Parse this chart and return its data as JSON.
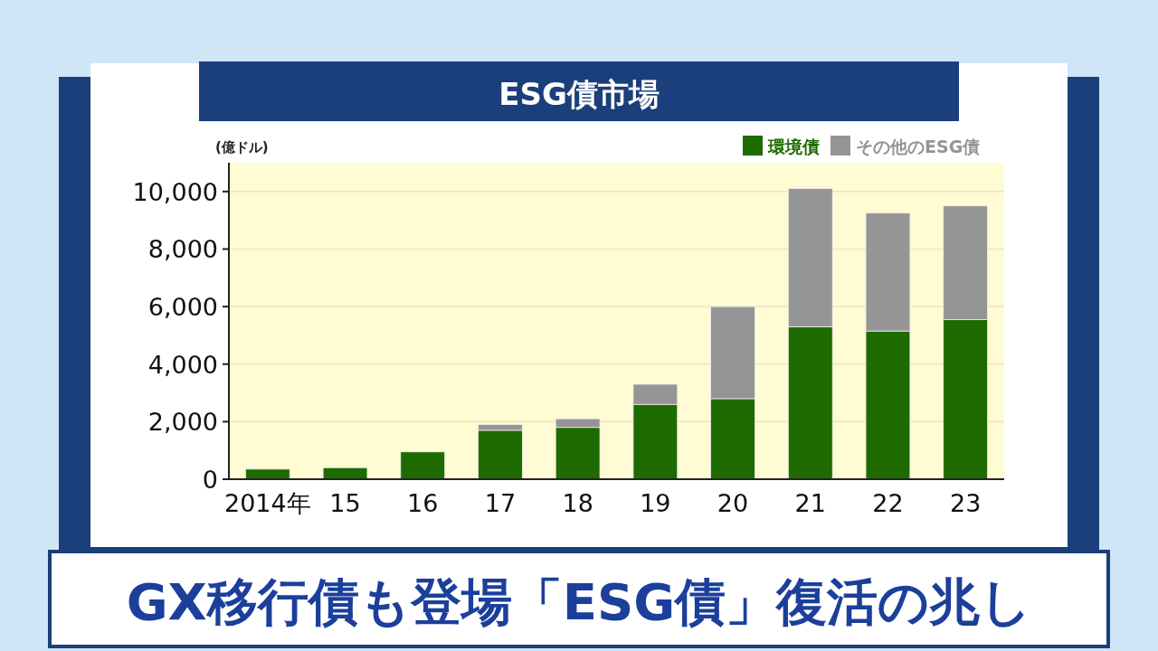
{
  "chart_data": {
    "type": "bar",
    "title": "ESG債市場",
    "subtitle": "GX移行債も登場「ESG債」復活の兆し",
    "ylabel": "(億ドル)",
    "categories": [
      "2014年",
      "15",
      "16",
      "17",
      "18",
      "19",
      "20",
      "21",
      "22",
      "23"
    ],
    "series": [
      {
        "name": "環境債",
        "color": "#1e6b00",
        "values": [
          350,
          400,
          950,
          1700,
          1800,
          2600,
          2800,
          5300,
          5150,
          5550
        ]
      },
      {
        "name": "その他のESG債",
        "color": "#959595",
        "values": [
          null,
          null,
          null,
          200,
          300,
          700,
          3200,
          4800,
          4100,
          3950
        ]
      }
    ],
    "stacked": true,
    "ylim": [
      0,
      11000
    ],
    "yticks": [
      {
        "value": 0,
        "label": "0"
      },
      {
        "value": 2000,
        "label": "2,000"
      },
      {
        "value": 4000,
        "label": "4,000"
      },
      {
        "value": 6000,
        "label": "6,000"
      },
      {
        "value": 8000,
        "label": "8,000"
      },
      {
        "value": 10000,
        "label": "10,000"
      }
    ],
    "grid": "y",
    "legend": "top right"
  }
}
